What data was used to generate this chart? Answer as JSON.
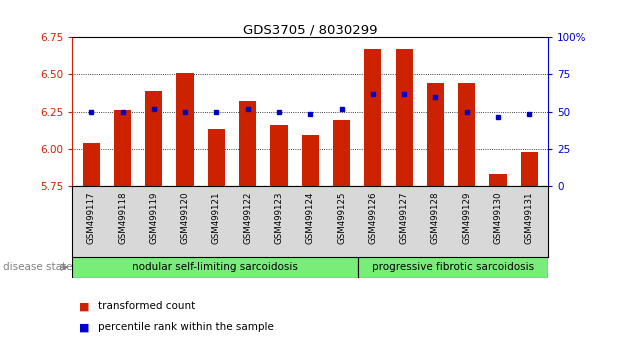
{
  "title": "GDS3705 / 8030299",
  "samples": [
    "GSM499117",
    "GSM499118",
    "GSM499119",
    "GSM499120",
    "GSM499121",
    "GSM499122",
    "GSM499123",
    "GSM499124",
    "GSM499125",
    "GSM499126",
    "GSM499127",
    "GSM499128",
    "GSM499129",
    "GSM499130",
    "GSM499131"
  ],
  "transformed_count": [
    6.04,
    6.26,
    6.39,
    6.51,
    6.13,
    6.32,
    6.16,
    6.09,
    6.19,
    6.67,
    6.67,
    6.44,
    6.44,
    5.83,
    5.98
  ],
  "percentile_rank": [
    50,
    50,
    52,
    50,
    50,
    52,
    50,
    48,
    52,
    62,
    62,
    60,
    50,
    46,
    48
  ],
  "y_min": 5.75,
  "y_max": 6.75,
  "y_ticks": [
    5.75,
    6.0,
    6.25,
    6.5,
    6.75
  ],
  "pct_ticks": [
    0,
    25,
    50,
    75,
    100
  ],
  "bar_color": "#cc2200",
  "dot_color": "#0000cc",
  "group1_label": "nodular self-limiting sarcoidosis",
  "group2_label": "progressive fibrotic sarcoidosis",
  "disease_state_label": "disease state",
  "legend_bar_label": "transformed count",
  "legend_dot_label": "percentile rank within the sample",
  "group_color": "#77ee77",
  "tick_color_left": "#cc2200",
  "tick_color_right": "#0000cc",
  "xlabel_bg": "#d8d8d8",
  "n_group1": 9,
  "n_group2": 6
}
